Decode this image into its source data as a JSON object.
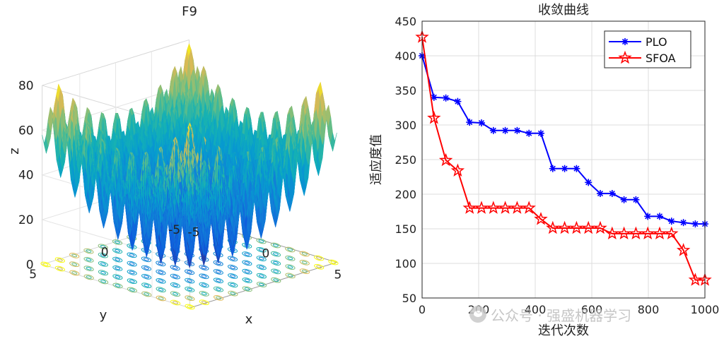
{
  "chart_data": [
    {
      "type": "surface3d",
      "title": "F9",
      "xlabel": "x",
      "ylabel": "y",
      "zlabel": "z",
      "x_ticks": [
        "-5",
        "0",
        "5"
      ],
      "y_ticks": [
        "-5",
        "0",
        "5"
      ],
      "z_ticks": [
        "0",
        "20",
        "40",
        "60",
        "80"
      ],
      "xlim": [
        -5.12,
        5.12
      ],
      "ylim": [
        -5.12,
        5.12
      ],
      "zlim": [
        0,
        80
      ],
      "function": "Rastrigin: z = 20 + x^2 - 10cos(2πx) + y^2 - 10cos(2πy)",
      "colormap": "parula",
      "contour_at_base": true
    },
    {
      "type": "line",
      "title": "收敛曲线",
      "xlabel": "迭代次数",
      "ylabel": "适应度值",
      "xlim": [
        0,
        1000
      ],
      "ylim": [
        50,
        450
      ],
      "x_ticks": [
        "0",
        "200",
        "400",
        "600",
        "800",
        "1000"
      ],
      "y_ticks": [
        "50",
        "100",
        "150",
        "200",
        "250",
        "300",
        "350",
        "400",
        "450"
      ],
      "grid": true,
      "legend_position": "top-right",
      "series": [
        {
          "name": "PLO",
          "color": "#0000ff",
          "marker": "asterisk",
          "x": [
            0,
            42,
            84,
            126,
            168,
            210,
            252,
            294,
            336,
            378,
            420,
            462,
            504,
            546,
            588,
            630,
            672,
            714,
            756,
            798,
            840,
            882,
            924,
            966,
            1000
          ],
          "y": [
            400,
            340,
            339,
            334,
            304,
            303,
            292,
            292,
            292,
            288,
            288,
            237,
            237,
            237,
            217,
            201,
            201,
            192,
            192,
            168,
            168,
            161,
            159,
            157,
            157
          ]
        },
        {
          "name": "SFOA",
          "color": "#ff0000",
          "marker": "pentagram",
          "x": [
            0,
            42,
            84,
            126,
            168,
            210,
            252,
            294,
            336,
            378,
            420,
            462,
            504,
            546,
            588,
            630,
            672,
            714,
            756,
            798,
            840,
            882,
            924,
            966,
            1000
          ],
          "y": [
            427,
            310,
            249,
            234,
            180,
            180,
            180,
            180,
            180,
            180,
            164,
            151,
            151,
            151,
            151,
            151,
            143,
            143,
            143,
            143,
            143,
            143,
            119,
            76,
            76
          ]
        }
      ]
    }
  ],
  "watermark": {
    "text": "公众号 · 强盛机器学习"
  }
}
